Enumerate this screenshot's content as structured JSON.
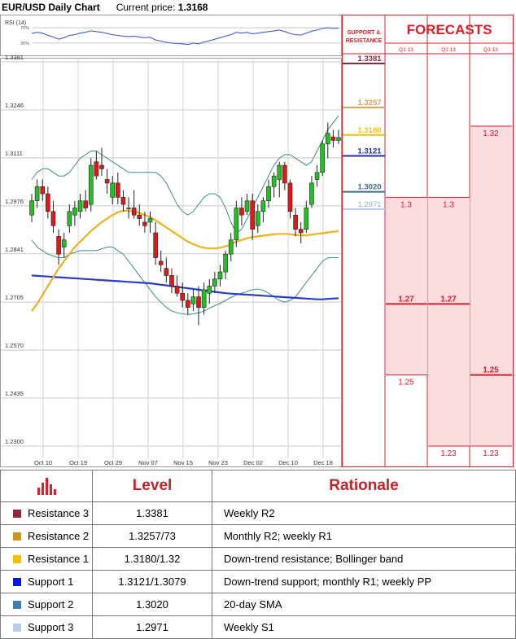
{
  "header": {
    "title": "EUR/USD Daily Chart",
    "price_label": "Current price:",
    "price_value": "1.3168"
  },
  "rsi": {
    "label": "RSI (14)",
    "ticks": [
      "70%",
      "30%"
    ]
  },
  "panel": {
    "sr_label": "SUPPORT & RESISTANCE",
    "forecasts_title": "FORECASTS",
    "quarters": [
      "Q1 13",
      "Q2 13",
      "Q3 13"
    ]
  },
  "colors": {
    "resistance3": "#8b2c3a",
    "resistance2": "#d2a35a",
    "resistance1": "#f5c000",
    "support1": "#1c2fa8",
    "support2": "#3e6e8e",
    "support3": "#b9cde6",
    "forecast_red": "#d9202b",
    "sma_yellow": "#f0b020",
    "sma_blue": "#2a3cc8",
    "bollinger": "#3c8f88"
  },
  "levels": [
    {
      "value": "1.3381",
      "color": "#8b2c3a"
    },
    {
      "value": "1.3257",
      "color": "#d2a35a"
    },
    {
      "value": "1.3180",
      "color": "#f5c000"
    },
    {
      "value": "1.3121",
      "color": "#1c2fa8"
    },
    {
      "value": "1.3020",
      "color": "#3e6e8e"
    },
    {
      "value": "1.2971",
      "color": "#b9cde6"
    }
  ],
  "forecasts": {
    "q1": [
      {
        "v": 1.3,
        "label": "1.3",
        "bold": false
      },
      {
        "v": 1.27,
        "label": "1.27",
        "bold": true
      },
      {
        "v": 1.25,
        "label": "1.25",
        "bold": false
      }
    ],
    "q2": [
      {
        "v": 1.3,
        "label": "1.3",
        "bold": false
      },
      {
        "v": 1.27,
        "label": "1.27",
        "bold": true
      },
      {
        "v": 1.23,
        "label": "1.23",
        "bold": false
      }
    ],
    "q3": [
      {
        "v": 1.32,
        "label": "1.32",
        "bold": false
      },
      {
        "v": 1.25,
        "label": "1.25",
        "bold": true
      },
      {
        "v": 1.23,
        "label": "1.23",
        "bold": false
      }
    ]
  },
  "chart_data": {
    "type": "candlestick",
    "title": "EUR/USD Daily Chart",
    "y_ticks": [
      1.3381,
      1.3246,
      1.3111,
      1.2976,
      1.2841,
      1.2705,
      1.257,
      1.2435,
      1.23
    ],
    "ylim": [
      1.23,
      1.3381
    ],
    "x_ticks": [
      "Oct 10",
      "Oct 19",
      "Oct 29",
      "Nov 07",
      "Nov 15",
      "Nov 23",
      "Dec 02",
      "Dec 10",
      "Dec 18"
    ],
    "candles": [
      [
        1.295,
        1.301,
        1.293,
        1.299
      ],
      [
        1.299,
        1.305,
        1.297,
        1.303
      ],
      [
        1.303,
        1.305,
        1.299,
        1.301
      ],
      [
        1.301,
        1.303,
        1.294,
        1.296
      ],
      [
        1.296,
        1.299,
        1.29,
        1.292
      ],
      [
        1.289,
        1.291,
        1.281,
        1.284
      ],
      [
        1.286,
        1.29,
        1.283,
        1.288
      ],
      [
        1.292,
        1.298,
        1.29,
        1.296
      ],
      [
        1.295,
        1.299,
        1.292,
        1.297
      ],
      [
        1.296,
        1.301,
        1.294,
        1.299
      ],
      [
        1.299,
        1.302,
        1.296,
        1.297
      ],
      [
        1.298,
        1.311,
        1.296,
        1.309
      ],
      [
        1.31,
        1.313,
        1.305,
        1.306
      ],
      [
        1.309,
        1.314,
        1.306,
        1.308
      ],
      [
        1.305,
        1.308,
        1.301,
        1.304
      ],
      [
        1.3,
        1.306,
        1.298,
        1.304
      ],
      [
        1.304,
        1.307,
        1.298,
        1.3
      ],
      [
        1.3,
        1.302,
        1.296,
        1.298
      ],
      [
        1.297,
        1.3,
        1.294,
        1.297
      ],
      [
        1.297,
        1.302,
        1.294,
        1.295
      ],
      [
        1.295,
        1.298,
        1.292,
        1.294
      ],
      [
        1.293,
        1.296,
        1.29,
        1.292
      ],
      [
        1.293,
        1.296,
        1.29,
        1.294
      ],
      [
        1.29,
        1.293,
        1.281,
        1.283
      ],
      [
        1.282,
        1.285,
        1.279,
        1.281
      ],
      [
        1.28,
        1.283,
        1.276,
        1.278
      ],
      [
        1.278,
        1.28,
        1.273,
        1.275
      ],
      [
        1.275,
        1.278,
        1.272,
        1.273
      ],
      [
        1.273,
        1.276,
        1.269,
        1.271
      ],
      [
        1.271,
        1.273,
        1.267,
        1.269
      ],
      [
        1.27,
        1.274,
        1.268,
        1.272
      ],
      [
        1.272,
        1.275,
        1.264,
        1.269
      ],
      [
        1.269,
        1.276,
        1.267,
        1.274
      ],
      [
        1.273,
        1.277,
        1.27,
        1.275
      ],
      [
        1.275,
        1.279,
        1.273,
        1.277
      ],
      [
        1.277,
        1.281,
        1.275,
        1.279
      ],
      [
        1.279,
        1.285,
        1.277,
        1.284
      ],
      [
        1.284,
        1.29,
        1.282,
        1.288
      ],
      [
        1.288,
        1.299,
        1.286,
        1.297
      ],
      [
        1.297,
        1.3,
        1.292,
        1.295
      ],
      [
        1.296,
        1.301,
        1.295,
        1.299
      ],
      [
        1.299,
        1.301,
        1.288,
        1.291
      ],
      [
        1.292,
        1.298,
        1.29,
        1.296
      ],
      [
        1.296,
        1.3,
        1.293,
        1.299
      ],
      [
        1.299,
        1.305,
        1.297,
        1.303
      ],
      [
        1.303,
        1.307,
        1.3,
        1.306
      ],
      [
        1.305,
        1.31,
        1.3,
        1.309
      ],
      [
        1.309,
        1.31,
        1.302,
        1.304
      ],
      [
        1.304,
        1.305,
        1.294,
        1.296
      ],
      [
        1.295,
        1.297,
        1.289,
        1.291
      ],
      [
        1.291,
        1.293,
        1.287,
        1.29
      ],
      [
        1.291,
        1.299,
        1.29,
        1.297
      ],
      [
        1.298,
        1.306,
        1.297,
        1.304
      ],
      [
        1.305,
        1.309,
        1.303,
        1.307
      ],
      [
        1.307,
        1.316,
        1.306,
        1.315
      ],
      [
        1.315,
        1.321,
        1.311,
        1.318
      ],
      [
        1.317,
        1.319,
        1.314,
        1.316
      ],
      [
        1.316,
        1.319,
        1.315,
        1.3168
      ]
    ],
    "sma_50": [
      1.268,
      1.27,
      1.2725,
      1.275,
      1.2775,
      1.28,
      1.282,
      1.284,
      1.286,
      1.2875,
      1.289,
      1.2905,
      1.2918,
      1.293,
      1.294,
      1.295,
      1.2958,
      1.2962,
      1.2962,
      1.296,
      1.2956,
      1.295,
      1.2944,
      1.2935,
      1.2925,
      1.2915,
      1.2905,
      1.2895,
      1.2885,
      1.2875,
      1.2868,
      1.2862,
      1.2858,
      1.2856,
      1.2856,
      1.2858,
      1.2862,
      1.2868,
      1.2875,
      1.288,
      1.2885,
      1.2888,
      1.289,
      1.2892,
      1.2894,
      1.2896,
      1.2897,
      1.2897,
      1.2896,
      1.2894,
      1.2893,
      1.2893,
      1.2895,
      1.2897,
      1.2899,
      1.2901,
      1.2903,
      1.2905
    ],
    "sma_200": [
      1.278,
      1.2779,
      1.2778,
      1.2777,
      1.2776,
      1.2775,
      1.2774,
      1.2773,
      1.2772,
      1.2771,
      1.277,
      1.2769,
      1.2768,
      1.2767,
      1.2766,
      1.2765,
      1.2764,
      1.2763,
      1.2762,
      1.2761,
      1.276,
      1.2759,
      1.2758,
      1.2756,
      1.2754,
      1.2752,
      1.275,
      1.2748,
      1.2746,
      1.2744,
      1.2742,
      1.274,
      1.2738,
      1.2736,
      1.2734,
      1.2732,
      1.273,
      1.2729,
      1.2728,
      1.2727,
      1.2726,
      1.2725,
      1.2724,
      1.2723,
      1.2722,
      1.2721,
      1.272,
      1.2719,
      1.2718,
      1.2717,
      1.2716,
      1.2715,
      1.2714,
      1.2713,
      1.2713,
      1.2714,
      1.2715,
      1.2716
    ],
    "bb_upper": [
      1.305,
      1.307,
      1.308,
      1.308,
      1.307,
      1.306,
      1.306,
      1.307,
      1.309,
      1.311,
      1.312,
      1.313,
      1.313,
      1.312,
      1.311,
      1.31,
      1.309,
      1.308,
      1.307,
      1.307,
      1.307,
      1.307,
      1.307,
      1.307,
      1.306,
      1.304,
      1.301,
      1.298,
      1.296,
      1.295,
      1.296,
      1.298,
      1.3,
      1.301,
      1.301,
      1.3,
      1.297,
      1.293,
      1.29,
      1.291,
      1.294,
      1.297,
      1.3,
      1.303,
      1.306,
      1.309,
      1.311,
      1.312,
      1.312,
      1.311,
      1.31,
      1.309,
      1.31,
      1.313,
      1.316,
      1.319,
      1.321,
      1.323
    ],
    "bb_lower": [
      1.288,
      1.286,
      1.285,
      1.284,
      1.2835,
      1.283,
      1.283,
      1.284,
      1.2845,
      1.285,
      1.285,
      1.285,
      1.285,
      1.2855,
      1.286,
      1.286,
      1.285,
      1.284,
      1.282,
      1.28,
      1.278,
      1.276,
      1.274,
      1.272,
      1.2705,
      1.269,
      1.268,
      1.2675,
      1.2672,
      1.267,
      1.2672,
      1.2675,
      1.268,
      1.2688,
      1.2695,
      1.2702,
      1.271,
      1.2718,
      1.2725,
      1.273,
      1.2735,
      1.274,
      1.2742,
      1.2738,
      1.273,
      1.272,
      1.271,
      1.2705,
      1.271,
      1.272,
      1.274,
      1.276,
      1.278,
      1.28,
      1.282,
      1.283,
      1.283,
      1.283
    ],
    "rsi_14": [
      55,
      58,
      56,
      50,
      46,
      40,
      44,
      50,
      52,
      56,
      58,
      62,
      60,
      58,
      55,
      52,
      50,
      48,
      47,
      48,
      46,
      44,
      45,
      38,
      35,
      32,
      30,
      29,
      28,
      26,
      30,
      28,
      33,
      36,
      40,
      44,
      48,
      52,
      58,
      56,
      58,
      54,
      56,
      58,
      60,
      62,
      64,
      60,
      55,
      52,
      51,
      56,
      61,
      64,
      68,
      70,
      68,
      69
    ]
  },
  "table": {
    "header_level": "Level",
    "header_rationale": "Rationale",
    "rows": [
      {
        "name": "Resistance 3",
        "level": "1.3381",
        "rationale": "Weekly R2",
        "color": "#8b2c3a"
      },
      {
        "name": "Resistance 2",
        "level": "1.3257/73",
        "rationale": "Monthly R2; weekly R1",
        "color": "#c8981a"
      },
      {
        "name": "Resistance 1",
        "level": "1.3180/1.32",
        "rationale": "Down-trend resistance; Bollinger band",
        "color": "#f5c000"
      },
      {
        "name": "Support 1",
        "level": "1.3121/1.3079",
        "rationale": "Down-trend support; monthly R1; weekly PP",
        "color": "#0a18d8"
      },
      {
        "name": "Support 2",
        "level": "1.3020",
        "rationale": "20-day SMA",
        "color": "#3e7eb0"
      },
      {
        "name": "Support 3",
        "level": "1.2971",
        "rationale": "Weekly S1",
        "color": "#b9cde6"
      }
    ]
  }
}
